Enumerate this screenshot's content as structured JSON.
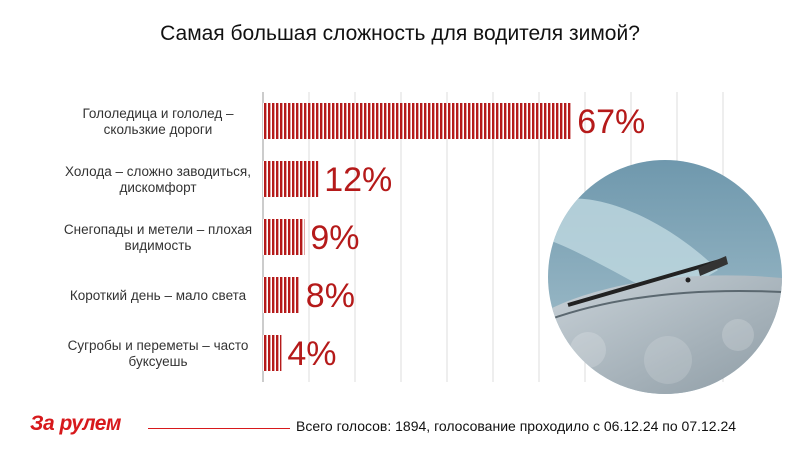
{
  "chart_data": {
    "type": "bar",
    "orientation": "horizontal",
    "title": "Самая большая сложность для водителя зимой?",
    "categories": [
      [
        "Гололедица и гололед –",
        "скользкие дороги"
      ],
      [
        "Холода – сложно заводиться,",
        "дискомфорт"
      ],
      [
        "Снегопады и метели – плохая",
        "видимость"
      ],
      [
        "Короткий день – мало света"
      ],
      [
        "Сугробы и переметы – часто",
        "буксуешь"
      ]
    ],
    "values": [
      67,
      12,
      9,
      8,
      4
    ],
    "value_labels": [
      "67%",
      "12%",
      "9%",
      "8%",
      "4%"
    ],
    "xlim": [
      0,
      100
    ],
    "grid": true,
    "bar_color": "#b51a1a",
    "bar_fill": "vertical-stripes"
  },
  "footer": {
    "text": "Всего голосов: 1894, голосование проходило с 06.12.24 по 07.12.24"
  },
  "brand": {
    "logo_text": "За рулем",
    "color": "#d7191c"
  }
}
